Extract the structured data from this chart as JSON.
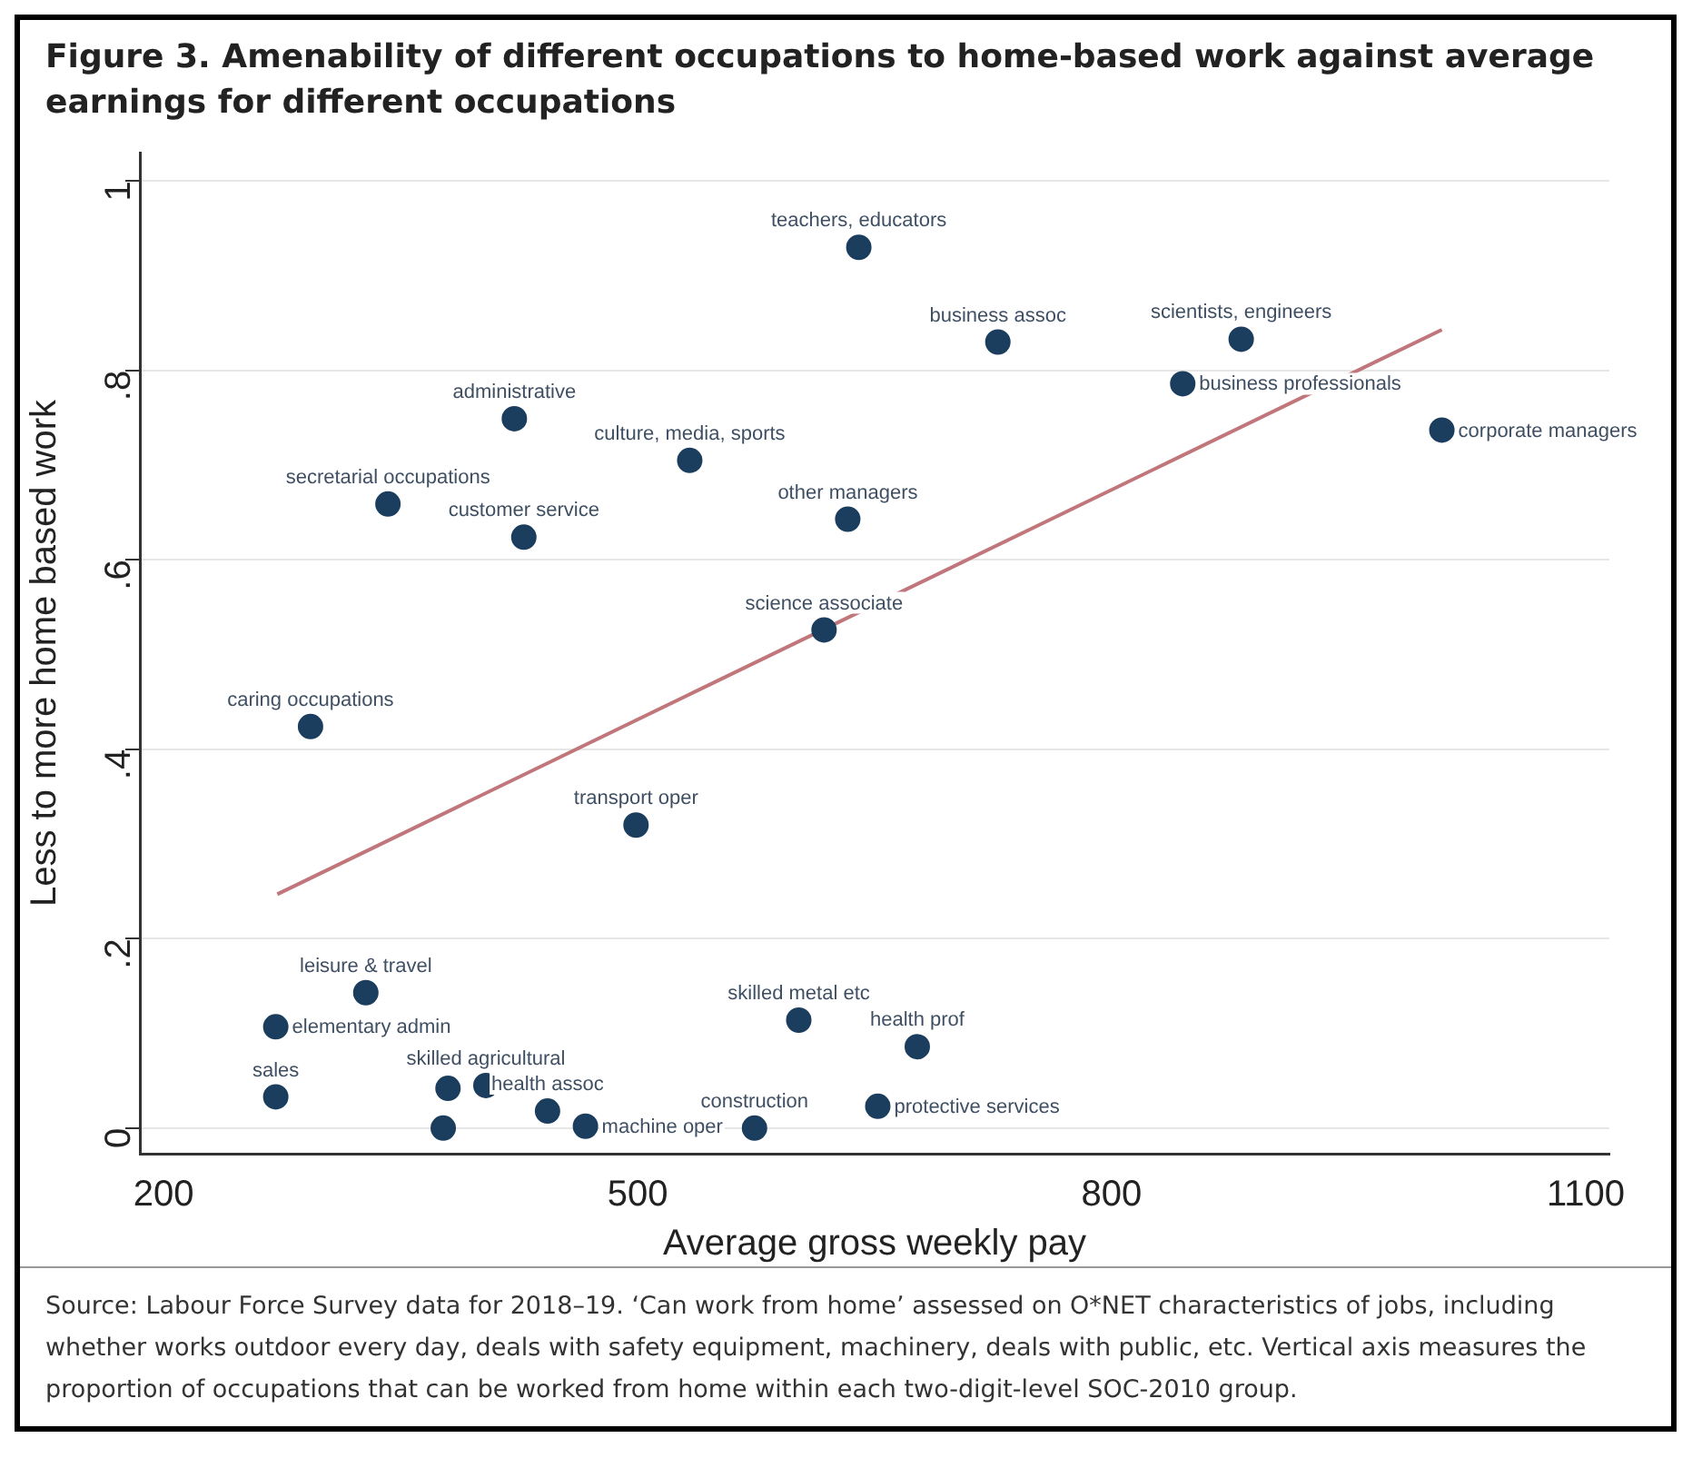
{
  "chart_data": {
    "type": "scatter",
    "title": "Figure 3. Amenability of different occupations to home-based work against average earnings for different occupations",
    "xlabel": "Average gross weekly pay",
    "ylabel": "Less to more home based work",
    "x": [
      640,
      728,
      882,
      845,
      1009,
      422,
      533,
      342,
      428,
      633,
      618,
      293,
      499,
      328,
      271,
      271,
      380,
      377,
      404,
      443,
      467,
      574,
      602,
      677,
      652
    ],
    "series": [
      {
        "color": "#1b3d5e",
        "marker": "circle",
        "values": [
          0.93,
          0.83,
          0.833,
          0.786,
          0.737,
          0.749,
          0.705,
          0.659,
          0.624,
          0.643,
          0.526,
          0.424,
          0.32,
          0.143,
          0.107,
          0.033,
          0.042,
          0.0,
          0.045,
          0.018,
          0.002,
          0.0,
          0.114,
          0.086,
          0.023
        ]
      },
      {
        "type": "line",
        "color": "#c0767a",
        "x": [
          272,
          1009
        ],
        "values": [
          0.247,
          0.843
        ]
      }
    ],
    "xlim": [
      185,
      1115
    ],
    "xticks": [
      200,
      500,
      800,
      1100
    ],
    "ylim": [
      -0.027,
      1.03
    ],
    "yticks": [
      0,
      {
        "value": 0.2,
        "label": ".2"
      },
      {
        "value": 0.4,
        "label": ".4"
      },
      {
        "value": 0.6,
        "label": ".6"
      },
      {
        "value": 0.8,
        "label": ".8"
      },
      1
    ],
    "grid": "y",
    "legend": false,
    "line_style": "solid",
    "annotations": [
      {
        "text": "teachers, educators",
        "x": 640,
        "y": 0.93
      },
      {
        "text": "business assoc",
        "x": 728,
        "y": 0.83
      },
      {
        "text": "scientists, engineers",
        "x": 882,
        "y": 0.833
      },
      {
        "text": "business professionals",
        "x": 845,
        "y": 0.786
      },
      {
        "text": "corporate managers",
        "x": 1009,
        "y": 0.737
      },
      {
        "text": "administrative",
        "x": 422,
        "y": 0.749
      },
      {
        "text": "culture, media, sports",
        "x": 533,
        "y": 0.705
      },
      {
        "text": "secretarial occupations",
        "x": 342,
        "y": 0.659
      },
      {
        "text": "customer service",
        "x": 428,
        "y": 0.624
      },
      {
        "text": "other managers",
        "x": 633,
        "y": 0.643
      },
      {
        "text": "science associate",
        "x": 618,
        "y": 0.526
      },
      {
        "text": "caring occupations",
        "x": 293,
        "y": 0.424
      },
      {
        "text": "transport oper",
        "x": 499,
        "y": 0.32
      },
      {
        "text": "leisure & travel",
        "x": 328,
        "y": 0.143
      },
      {
        "text": "elementary admin",
        "x": 271,
        "y": 0.107
      },
      {
        "text": "sales",
        "x": 271,
        "y": 0.033
      },
      {
        "text": "skilled agricultural",
        "x": 404,
        "y": 0.045
      },
      {
        "text": "health assoc",
        "x": 443,
        "y": 0.018
      },
      {
        "text": "machine oper",
        "x": 467,
        "y": 0.002
      },
      {
        "text": "construction",
        "x": 574,
        "y": 0.0
      },
      {
        "text": "skilled metal etc",
        "x": 602,
        "y": 0.114
      },
      {
        "text": "health prof",
        "x": 677,
        "y": 0.086
      },
      {
        "text": "protective services",
        "x": 652,
        "y": 0.023
      },
      "Source: Labour Force Survey data for 2018–19. ‘Can work from home’ assessed on O*NET characteristics of jobs, including whether works outdoor every day, deals with safety equipment, machinery, deals with public, etc. Vertical axis measures the proportion of occupations that can be worked from home within each two-digit-level SOC-2010 group."
    ]
  }
}
